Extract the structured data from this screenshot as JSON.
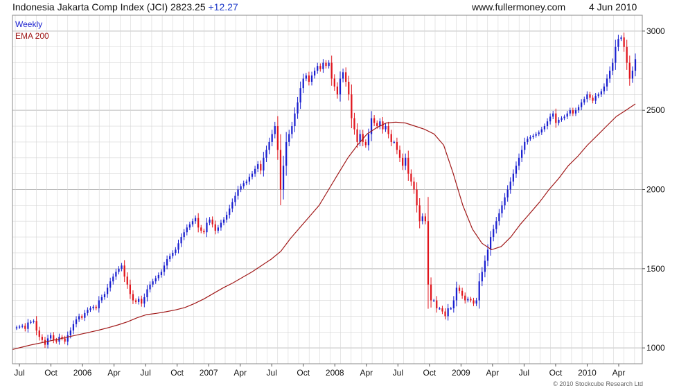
{
  "header": {
    "title": "Indonesia Jakarta Comp Index (JCI) 2823.25",
    "change": "+12.27",
    "site": "www.fullermoney.com",
    "date": "4 Jun 2010"
  },
  "copyright": "© 2010 Stockcube Research Ltd",
  "colors": {
    "up": "#1a20d0",
    "down": "#e0141c",
    "ema": "#a01818",
    "grid": "#d6d6d6"
  },
  "chart_data": {
    "type": "candlestick",
    "title": "Indonesia Jakarta Comp Index (JCI) 2823.25 +12.27",
    "xlabel": "",
    "ylabel": "",
    "ylim": [
      900,
      3100
    ],
    "yticks": [
      1000,
      1500,
      2000,
      2500,
      3000
    ],
    "grid": true,
    "x_tick_labels": [
      "Jul",
      "Oct",
      "2006",
      "Apr",
      "Jul",
      "Oct",
      "2007",
      "Apr",
      "Jul",
      "Oct",
      "2008",
      "Apr",
      "Jul",
      "Oct",
      "2009",
      "Apr",
      "Jul",
      "Oct",
      "2010",
      "Apr"
    ],
    "legend": {
      "position": "top-left",
      "entries": [
        {
          "name": "Weekly",
          "color": "#1a20d0"
        },
        {
          "name": "EMA 200",
          "color": "#a01818"
        }
      ]
    },
    "series": [
      {
        "name": "Weekly",
        "kind": "weekly close (approx.)",
        "values": [
          1130,
          1135,
          1140,
          1120,
          1160,
          1165,
          1170,
          1110,
          1070,
          1050,
          1020,
          1060,
          1080,
          1050,
          1040,
          1070,
          1060,
          1040,
          1080,
          1110,
          1150,
          1180,
          1200,
          1190,
          1220,
          1240,
          1250,
          1260,
          1250,
          1300,
          1320,
          1340,
          1380,
          1420,
          1450,
          1480,
          1500,
          1520,
          1450,
          1400,
          1340,
          1300,
          1290,
          1310,
          1280,
          1320,
          1370,
          1400,
          1420,
          1440,
          1460,
          1480,
          1520,
          1560,
          1580,
          1600,
          1620,
          1660,
          1700,
          1730,
          1760,
          1780,
          1800,
          1820,
          1760,
          1740,
          1730,
          1790,
          1810,
          1780,
          1740,
          1760,
          1790,
          1810,
          1840,
          1880,
          1920,
          1960,
          2000,
          2020,
          2040,
          2050,
          2080,
          2100,
          2130,
          2160,
          2120,
          2200,
          2250,
          2300,
          2350,
          2400,
          2250,
          2000,
          2150,
          2300,
          2350,
          2400,
          2480,
          2550,
          2640,
          2700,
          2720,
          2680,
          2720,
          2750,
          2780,
          2760,
          2800,
          2780,
          2800,
          2700,
          2650,
          2600,
          2700,
          2740,
          2680,
          2600,
          2450,
          2380,
          2300,
          2350,
          2300,
          2280,
          2350,
          2450,
          2420,
          2400,
          2430,
          2380,
          2400,
          2350,
          2300,
          2300,
          2250,
          2200,
          2150,
          2200,
          2100,
          2050,
          2000,
          1900,
          1800,
          1830,
          1800,
          1400,
          1300,
          1300,
          1250,
          1250,
          1230,
          1200,
          1250,
          1250,
          1300,
          1380,
          1360,
          1330,
          1300,
          1310,
          1300,
          1280,
          1300,
          1420,
          1480,
          1550,
          1620,
          1700,
          1750,
          1800,
          1850,
          1900,
          1950,
          2000,
          2050,
          2100,
          2150,
          2200,
          2250,
          2300,
          2320,
          2330,
          2340,
          2350,
          2360,
          2380,
          2400,
          2430,
          2460,
          2480,
          2420,
          2440,
          2450,
          2460,
          2480,
          2500,
          2480,
          2500,
          2520,
          2550,
          2570,
          2600,
          2580,
          2560,
          2590,
          2600,
          2620,
          2650,
          2700,
          2750,
          2800,
          2900,
          2950,
          2960,
          2900,
          2800,
          2700,
          2750,
          2823
        ]
      },
      {
        "name": "EMA 200",
        "kind": "exponential moving average (approx.)",
        "values": [
          990,
          1005,
          1020,
          1032,
          1045,
          1058,
          1072,
          1085,
          1098,
          1112,
          1128,
          1145,
          1165,
          1190,
          1210,
          1218,
          1228,
          1240,
          1255,
          1280,
          1310,
          1345,
          1380,
          1410,
          1445,
          1480,
          1520,
          1560,
          1610,
          1690,
          1760,
          1830,
          1900,
          2000,
          2100,
          2200,
          2280,
          2350,
          2390,
          2420,
          2425,
          2420,
          2400,
          2380,
          2350,
          2280,
          2100,
          1900,
          1750,
          1660,
          1620,
          1640,
          1700,
          1780,
          1850,
          1920,
          2000,
          2070,
          2150,
          2210,
          2280,
          2340,
          2400,
          2460,
          2500,
          2540
        ]
      }
    ]
  }
}
